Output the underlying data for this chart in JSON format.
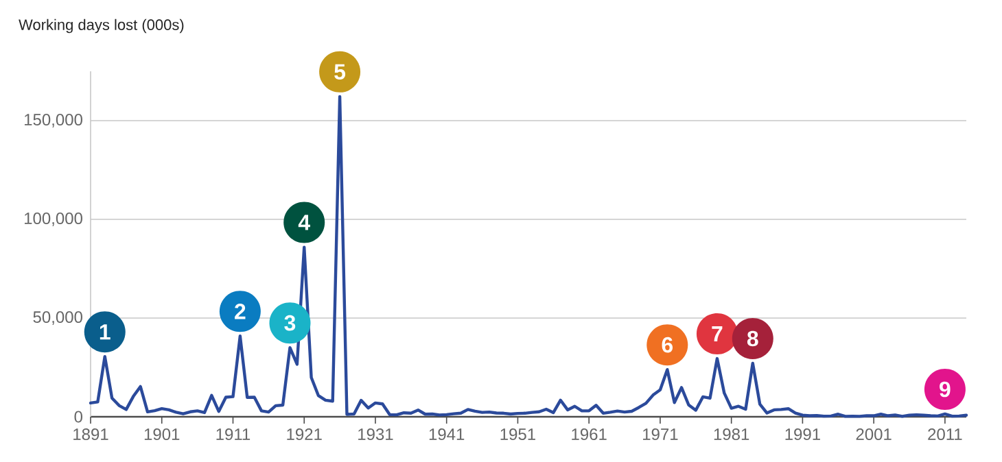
{
  "chart_data": {
    "type": "line",
    "title": "Working days lost (000s)",
    "x": [
      1891,
      1892,
      1893,
      1894,
      1895,
      1896,
      1897,
      1898,
      1899,
      1900,
      1901,
      1902,
      1903,
      1904,
      1905,
      1906,
      1907,
      1908,
      1909,
      1910,
      1911,
      1912,
      1913,
      1914,
      1915,
      1916,
      1917,
      1918,
      1919,
      1920,
      1921,
      1922,
      1923,
      1924,
      1925,
      1926,
      1927,
      1928,
      1929,
      1930,
      1931,
      1932,
      1933,
      1934,
      1935,
      1936,
      1937,
      1938,
      1939,
      1940,
      1941,
      1942,
      1943,
      1944,
      1945,
      1946,
      1947,
      1948,
      1949,
      1950,
      1951,
      1952,
      1953,
      1954,
      1955,
      1956,
      1957,
      1958,
      1959,
      1960,
      1961,
      1962,
      1963,
      1964,
      1965,
      1966,
      1967,
      1968,
      1969,
      1970,
      1971,
      1972,
      1973,
      1974,
      1975,
      1976,
      1977,
      1978,
      1979,
      1980,
      1981,
      1982,
      1983,
      1984,
      1985,
      1986,
      1987,
      1988,
      1989,
      1990,
      1991,
      1992,
      1993,
      1994,
      1995,
      1996,
      1997,
      1998,
      1999,
      2000,
      2001,
      2002,
      2003,
      2004,
      2005,
      2006,
      2007,
      2008,
      2009,
      2010,
      2011,
      2012,
      2013,
      2014
    ],
    "series": [
      {
        "color": "#2b4a9b",
        "values": [
          7000,
          7500,
          30500,
          9500,
          5700,
          3700,
          10300,
          15300,
          2500,
          3100,
          4100,
          3500,
          2300,
          1500,
          2500,
          3000,
          2100,
          10800,
          2700,
          9900,
          10200,
          40900,
          9800,
          9900,
          3000,
          2400,
          5600,
          5900,
          35000,
          26600,
          85900,
          19900,
          10700,
          8400,
          7900,
          162200,
          1200,
          1400,
          8300,
          4400,
          7000,
          6500,
          1100,
          1000,
          2000,
          1800,
          3400,
          1300,
          1400,
          900,
          1100,
          1500,
          1800,
          3700,
          2800,
          2200,
          2400,
          1900,
          1800,
          1400,
          1700,
          1800,
          2200,
          2500,
          3800,
          2100,
          8400,
          3500,
          5300,
          3000,
          3000,
          5800,
          1800,
          2300,
          2900,
          2400,
          2800,
          4700,
          6800,
          11000,
          13600,
          23900,
          7200,
          14800,
          6000,
          3300,
          10100,
          9400,
          29500,
          12000,
          4300,
          5300,
          3800,
          27100,
          6400,
          1900,
          3500,
          3700,
          4100,
          1900,
          800,
          500,
          600,
          300,
          400,
          1300,
          200,
          300,
          200,
          500,
          500,
          1300,
          500,
          900,
          200,
          800,
          1000,
          800,
          500,
          400,
          1400,
          300,
          400,
          800
        ]
      }
    ],
    "xlim": [
      1891,
      2014
    ],
    "ylim": [
      0,
      175000
    ],
    "xticks": [
      1891,
      1901,
      1911,
      1921,
      1931,
      1941,
      1951,
      1961,
      1971,
      1981,
      1991,
      2001,
      2011
    ],
    "yticks": [
      0,
      {
        "value": 50000,
        "label": "50,000"
      },
      {
        "value": 100000,
        "label": "100,000"
      },
      {
        "value": 150000,
        "label": "150,000"
      }
    ],
    "grid": "y",
    "marker": "none",
    "line_style": "solid",
    "annotations": [
      {
        "text": "1",
        "x": 1893,
        "y": 30500
      },
      {
        "text": "2",
        "x": 1912,
        "y": 40900
      },
      {
        "text": "3",
        "x": 1919,
        "y": 35000
      },
      {
        "text": "4",
        "x": 1921,
        "y": 85900
      },
      {
        "text": "5",
        "x": 1926,
        "y": 162200
      },
      {
        "text": "6",
        "x": 1972,
        "y": 23900
      },
      {
        "text": "7",
        "x": 1979,
        "y": 29500
      },
      {
        "text": "8",
        "x": 1984,
        "y": 27100
      },
      {
        "text": "9",
        "x": 2011,
        "y": 1400
      }
    ]
  }
}
